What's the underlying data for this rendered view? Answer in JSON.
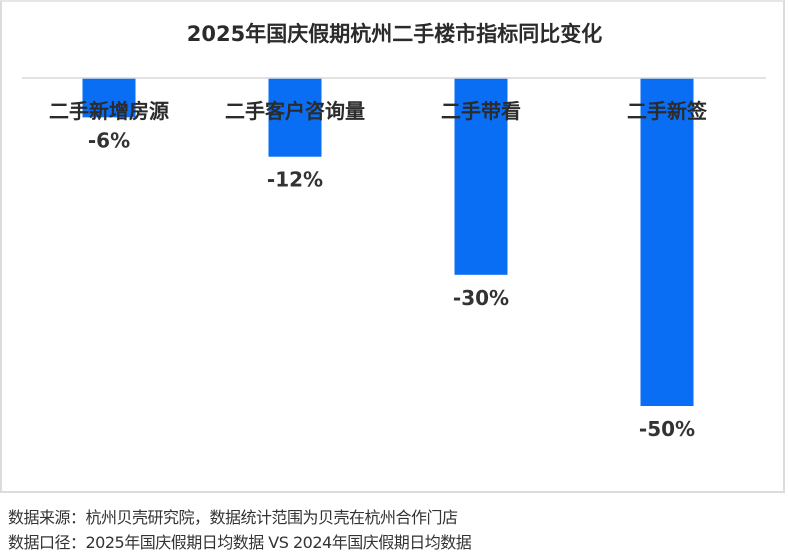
{
  "chart_data": {
    "type": "bar",
    "title": "2025年国庆假期杭州二手楼市指标同比变化",
    "categories": [
      "二手新增房源",
      "二手客户咨询量",
      "二手带看",
      "二手新签"
    ],
    "values": [
      -6,
      -12,
      -30,
      -50
    ],
    "value_labels": [
      "-6%",
      "-12%",
      "-30%",
      "-50%"
    ],
    "unit": "%",
    "xlabel": "",
    "ylabel": "",
    "ylim": [
      -50,
      0
    ],
    "grid": false,
    "legend": "none",
    "bar_color": "#0A6EF5"
  },
  "footer": {
    "source": "数据来源：杭州贝壳研究院，数据统计范围为贝壳在杭州合作门店",
    "scope": "数据口径：2025年国庆假期日均数据 VS 2024年国庆假期日均数据"
  }
}
